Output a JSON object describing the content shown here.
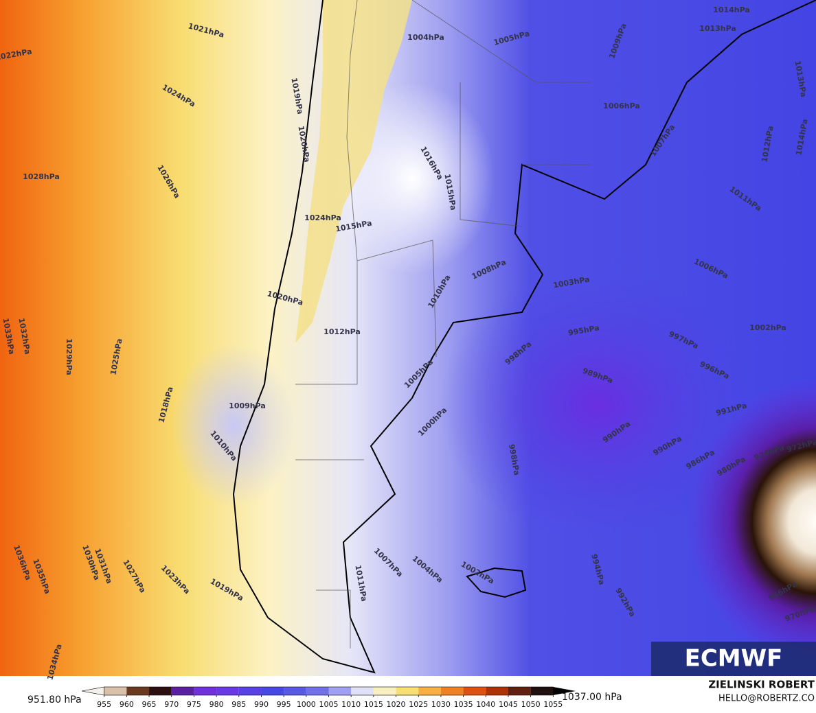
{
  "map": {
    "isobar_labels": [
      "1021hPa",
      "1022hPa",
      "1024hPa",
      "1028hPa",
      "1026hPa",
      "1019hPa",
      "1020hPa",
      "1024hPa",
      "1015hPa",
      "1016hPa",
      "1015hPa",
      "1008hPa",
      "1010hPa",
      "1020hPa",
      "1012hPa",
      "1003hPa",
      "1006hPa",
      "1002hPa",
      "995hPa",
      "997hPa",
      "998hPa",
      "989hPa",
      "996hPa",
      "991hPa",
      "990hPa",
      "990hPa",
      "1009hPa",
      "1010hPa",
      "1005hPa",
      "1000hPa",
      "998hPa",
      "1018hPa",
      "1025hPa",
      "1029hPa",
      "1032hPa",
      "1033hPa",
      "1036hPa",
      "1035hPa",
      "1031hPa",
      "1030hPa",
      "1027hPa",
      "1023hPa",
      "1019hPa",
      "1007hPa",
      "1004hPa",
      "1002hPa",
      "994hPa",
      "992hPa",
      "1011hPa",
      "1004hPa",
      "1005hPa",
      "1006hPa",
      "1007hPa",
      "1009hPa",
      "1013hPa",
      "1014hPa",
      "1013hPa",
      "1012hPa",
      "1014hPa",
      "1011hPa",
      "986hPa",
      "980hPa",
      "976hPa",
      "972hPa",
      "966hPa",
      "970hPa",
      "1034hPa"
    ],
    "logo": "ECMWF"
  },
  "colorbar": {
    "min_label": "951.80 hPa",
    "max_label": "1037.00 hPa",
    "range": [
      950,
      1060
    ],
    "ticks": [
      955,
      960,
      965,
      970,
      975,
      980,
      985,
      990,
      995,
      1000,
      1005,
      1010,
      1015,
      1020,
      1025,
      1030,
      1035,
      1040,
      1045,
      1050,
      1055
    ],
    "colors": [
      "#f4f0ec",
      "#d8c0a8",
      "#6a3a20",
      "#2a1010",
      "#5a20a0",
      "#7030e0",
      "#6a38e8",
      "#5a40e8",
      "#4848e8",
      "#5858e8",
      "#7070ec",
      "#a0a0f0",
      "#e0e0f8",
      "#f8f0c0",
      "#f8e070",
      "#f8b040",
      "#f08020",
      "#e05010",
      "#b03008",
      "#602010",
      "#201010"
    ]
  },
  "credits": {
    "author": "ZIELINSKI ROBERT",
    "contact": "HELLO@ROBERTZ.CO"
  }
}
